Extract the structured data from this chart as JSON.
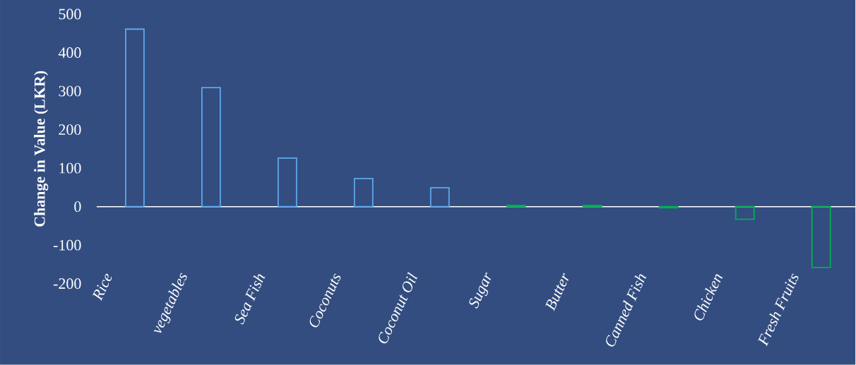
{
  "chart_data": {
    "type": "bar",
    "ylabel": "Change in Value (LKR)",
    "categories": [
      "Rice",
      "vegetables",
      "Sea Fish",
      "Coconuts",
      "Coconut Oil",
      "Sugar",
      "Butter",
      "Canned Fish",
      "Chicken",
      "Fresh Fruits"
    ],
    "values": [
      461,
      309,
      126,
      73,
      49,
      3,
      3,
      -3,
      -33,
      -158
    ],
    "colors": [
      "#5ea8ec",
      "#5ea8ec",
      "#5ea8ec",
      "#5ea8ec",
      "#5ea8ec",
      "#00b050",
      "#00b050",
      "#00b050",
      "#00b050",
      "#00b050"
    ],
    "ylim": [
      -200,
      500
    ],
    "yticks": [
      -200,
      -100,
      0,
      100,
      200,
      300,
      400,
      500
    ]
  }
}
